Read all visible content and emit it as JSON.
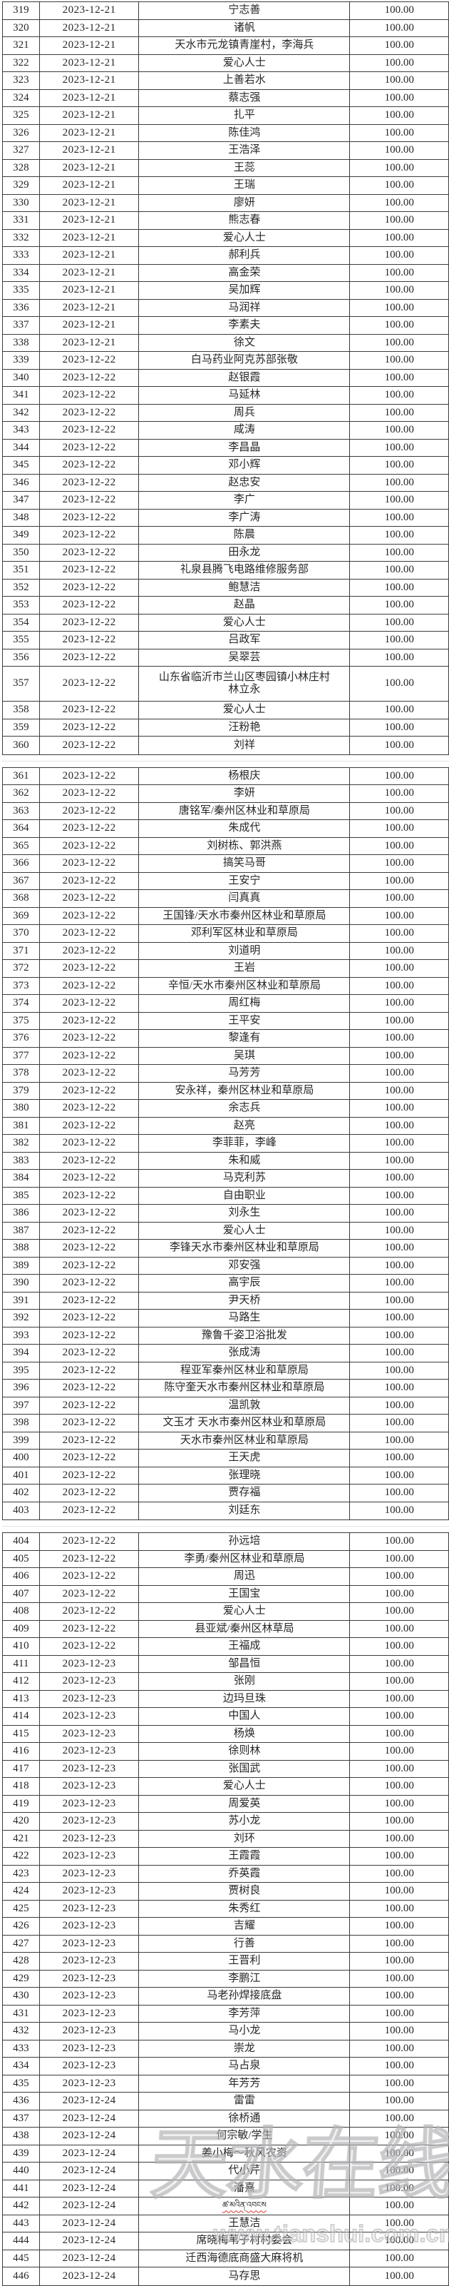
{
  "watermark": {
    "logo": "天水在线",
    "url": "www.tianshui.com.cn"
  },
  "colors": {
    "border": "#3c3c3c",
    "text": "#262626",
    "spellcheck_underline": "#d9332e",
    "watermark_gray": "#c8c8cb"
  },
  "amount_all": "100.00",
  "segments": [
    {
      "start": 319,
      "end": 360
    },
    {
      "start": 361,
      "end": 403
    },
    {
      "start": 404,
      "end": 446
    }
  ],
  "table": {
    "rows": [
      {
        "n": "319",
        "d": "2023-12-21",
        "name": "宁志善",
        "amt": "100.00"
      },
      {
        "n": "320",
        "d": "2023-12-21",
        "name": "诸帆",
        "amt": "100.00"
      },
      {
        "n": "321",
        "d": "2023-12-21",
        "name": "天水市元龙镇青崖村，李海兵",
        "amt": "100.00"
      },
      {
        "n": "322",
        "d": "2023-12-21",
        "name": "爱心人士",
        "amt": "100.00"
      },
      {
        "n": "323",
        "d": "2023-12-21",
        "name": "上善若水",
        "amt": "100.00"
      },
      {
        "n": "324",
        "d": "2023-12-21",
        "name": "蔡志强",
        "amt": "100.00"
      },
      {
        "n": "325",
        "d": "2023-12-21",
        "name": "扎平",
        "amt": "100.00"
      },
      {
        "n": "326",
        "d": "2023-12-21",
        "name": "陈佳鸿",
        "amt": "100.00"
      },
      {
        "n": "327",
        "d": "2023-12-21",
        "name": "王浩泽",
        "amt": "100.00"
      },
      {
        "n": "328",
        "d": "2023-12-21",
        "name": "王蕊",
        "amt": "100.00"
      },
      {
        "n": "329",
        "d": "2023-12-21",
        "name": "王瑞",
        "amt": "100.00"
      },
      {
        "n": "330",
        "d": "2023-12-21",
        "name": "廖妍",
        "amt": "100.00"
      },
      {
        "n": "331",
        "d": "2023-12-21",
        "name": "熊志春",
        "amt": "100.00"
      },
      {
        "n": "332",
        "d": "2023-12-21",
        "name": "爱心人士",
        "amt": "100.00"
      },
      {
        "n": "333",
        "d": "2023-12-21",
        "name": "郝利兵",
        "amt": "100.00"
      },
      {
        "n": "334",
        "d": "2023-12-21",
        "name": "高金荣",
        "amt": "100.00"
      },
      {
        "n": "335",
        "d": "2023-12-21",
        "name": "吴加辉",
        "amt": "100.00"
      },
      {
        "n": "336",
        "d": "2023-12-21",
        "name": "马润祥",
        "amt": "100.00"
      },
      {
        "n": "337",
        "d": "2023-12-21",
        "name": "李素夫",
        "amt": "100.00"
      },
      {
        "n": "338",
        "d": "2023-12-21",
        "name": "徐文",
        "amt": "100.00"
      },
      {
        "n": "339",
        "d": "2023-12-22",
        "name": "白马药业阿克苏部张敬",
        "amt": "100.00"
      },
      {
        "n": "340",
        "d": "2023-12-22",
        "name": "赵银霞",
        "amt": "100.00"
      },
      {
        "n": "341",
        "d": "2023-12-22",
        "name": "马延林",
        "amt": "100.00"
      },
      {
        "n": "342",
        "d": "2023-12-22",
        "name": "周兵",
        "amt": "100.00"
      },
      {
        "n": "343",
        "d": "2023-12-22",
        "name": "咸涛",
        "amt": "100.00"
      },
      {
        "n": "344",
        "d": "2023-12-22",
        "name": "李昌晶",
        "amt": "100.00"
      },
      {
        "n": "345",
        "d": "2023-12-22",
        "name": "邓小辉",
        "amt": "100.00"
      },
      {
        "n": "346",
        "d": "2023-12-22",
        "name": "赵忠安",
        "amt": "100.00"
      },
      {
        "n": "347",
        "d": "2023-12-22",
        "name": "李广",
        "amt": "100.00"
      },
      {
        "n": "348",
        "d": "2023-12-22",
        "name": "李广涛",
        "amt": "100.00"
      },
      {
        "n": "349",
        "d": "2023-12-22",
        "name": "陈晨",
        "amt": "100.00"
      },
      {
        "n": "350",
        "d": "2023-12-22",
        "name": "田永龙",
        "amt": "100.00"
      },
      {
        "n": "351",
        "d": "2023-12-22",
        "name": "礼泉县腾飞电路维修服务部",
        "amt": "100.00"
      },
      {
        "n": "352",
        "d": "2023-12-22",
        "name": "鲍慧洁",
        "amt": "100.00"
      },
      {
        "n": "353",
        "d": "2023-12-22",
        "name": "赵晶",
        "amt": "100.00"
      },
      {
        "n": "354",
        "d": "2023-12-22",
        "name": "爱心人士",
        "amt": "100.00"
      },
      {
        "n": "355",
        "d": "2023-12-22",
        "name": "吕政军",
        "amt": "100.00"
      },
      {
        "n": "356",
        "d": "2023-12-22",
        "name": "吴翠芸",
        "amt": "100.00"
      },
      {
        "n": "357",
        "d": "2023-12-22",
        "name": "山东省临沂市兰山区枣园镇小林庄村\n林立永",
        "amt": "100.00",
        "tall": true
      },
      {
        "n": "358",
        "d": "2023-12-22",
        "name": "爱心人士",
        "amt": "100.00"
      },
      {
        "n": "359",
        "d": "2023-12-22",
        "name": "汪粉艳",
        "amt": "100.00"
      },
      {
        "n": "360",
        "d": "2023-12-22",
        "name": "刘祥",
        "amt": "100.00"
      },
      {
        "n": "361",
        "d": "2023-12-22",
        "name": "杨根庆",
        "amt": "100.00"
      },
      {
        "n": "362",
        "d": "2023-12-22",
        "name": "李妍",
        "amt": "100.00"
      },
      {
        "n": "363",
        "d": "2023-12-22",
        "name": "唐铭军/秦州区林业和草原局",
        "amt": "100.00"
      },
      {
        "n": "364",
        "d": "2023-12-22",
        "name": "朱成代",
        "amt": "100.00"
      },
      {
        "n": "365",
        "d": "2023-12-22",
        "name": "刘树栋、郭洪燕",
        "amt": "100.00"
      },
      {
        "n": "366",
        "d": "2023-12-22",
        "name": "搞笑马哥",
        "amt": "100.00"
      },
      {
        "n": "367",
        "d": "2023-12-22",
        "name": "王安宁",
        "amt": "100.00"
      },
      {
        "n": "368",
        "d": "2023-12-22",
        "name": "闫真真",
        "amt": "100.00"
      },
      {
        "n": "369",
        "d": "2023-12-22",
        "name": "王国锋/天水市秦州区林业和草原局",
        "amt": "100.00"
      },
      {
        "n": "370",
        "d": "2023-12-22",
        "name": "邓利军区林业和草原局",
        "amt": "100.00"
      },
      {
        "n": "371",
        "d": "2023-12-22",
        "name": "刘道明",
        "amt": "100.00"
      },
      {
        "n": "372",
        "d": "2023-12-22",
        "name": "王岩",
        "amt": "100.00"
      },
      {
        "n": "373",
        "d": "2023-12-22",
        "name": "辛恒/天水市秦州区林业和草原局",
        "amt": "100.00"
      },
      {
        "n": "374",
        "d": "2023-12-22",
        "name": "周红梅",
        "amt": "100.00"
      },
      {
        "n": "375",
        "d": "2023-12-22",
        "name": "王平安",
        "amt": "100.00"
      },
      {
        "n": "376",
        "d": "2023-12-22",
        "name": "黎逢有",
        "amt": "100.00"
      },
      {
        "n": "377",
        "d": "2023-12-22",
        "name": "吴琪",
        "amt": "100.00"
      },
      {
        "n": "378",
        "d": "2023-12-22",
        "name": "马芳芳",
        "amt": "100.00"
      },
      {
        "n": "379",
        "d": "2023-12-22",
        "name": "安永祥，秦州区林业和草原局",
        "amt": "100.00"
      },
      {
        "n": "380",
        "d": "2023-12-22",
        "name": "余志兵",
        "amt": "100.00"
      },
      {
        "n": "381",
        "d": "2023-12-22",
        "name": "赵亮",
        "amt": "100.00"
      },
      {
        "n": "382",
        "d": "2023-12-22",
        "name": "李菲菲，李峰",
        "amt": "100.00"
      },
      {
        "n": "383",
        "d": "2023-12-22",
        "name": "朱和威",
        "amt": "100.00"
      },
      {
        "n": "384",
        "d": "2023-12-22",
        "name": "马克利苏",
        "amt": "100.00"
      },
      {
        "n": "385",
        "d": "2023-12-22",
        "name": "自由职业",
        "amt": "100.00"
      },
      {
        "n": "386",
        "d": "2023-12-22",
        "name": "刘永生",
        "amt": "100.00"
      },
      {
        "n": "387",
        "d": "2023-12-22",
        "name": "爱心人士",
        "amt": "100.00"
      },
      {
        "n": "388",
        "d": "2023-12-22",
        "name": "李锋天水市秦州区林业和草原局",
        "amt": "100.00"
      },
      {
        "n": "389",
        "d": "2023-12-22",
        "name": "邓安强",
        "amt": "100.00"
      },
      {
        "n": "390",
        "d": "2023-12-22",
        "name": "高宇辰",
        "amt": "100.00"
      },
      {
        "n": "391",
        "d": "2023-12-22",
        "name": "尹天桥",
        "amt": "100.00"
      },
      {
        "n": "392",
        "d": "2023-12-22",
        "name": "马路生",
        "amt": "100.00"
      },
      {
        "n": "393",
        "d": "2023-12-22",
        "name": "豫鲁千姿卫浴批发",
        "amt": "100.00"
      },
      {
        "n": "394",
        "d": "2023-12-22",
        "name": "张成涛",
        "amt": "100.00"
      },
      {
        "n": "395",
        "d": "2023-12-22",
        "name": "程亚军秦州区林业和草原局",
        "amt": "100.00"
      },
      {
        "n": "396",
        "d": "2023-12-22",
        "name": "陈守奎天水市秦州区林业和草原局",
        "amt": "100.00"
      },
      {
        "n": "397",
        "d": "2023-12-22",
        "name": "温凯敦",
        "amt": "100.00"
      },
      {
        "n": "398",
        "d": "2023-12-22",
        "name": "文玉才 天水市秦州区林业和草原局",
        "amt": "100.00"
      },
      {
        "n": "399",
        "d": "2023-12-22",
        "name": "天水市秦州区林业和草原局",
        "amt": "100.00"
      },
      {
        "n": "400",
        "d": "2023-12-22",
        "name": "王天虎",
        "amt": "100.00"
      },
      {
        "n": "401",
        "d": "2023-12-22",
        "name": "张理晓",
        "amt": "100.00"
      },
      {
        "n": "402",
        "d": "2023-12-22",
        "name": "贾存福",
        "amt": "100.00"
      },
      {
        "n": "403",
        "d": "2023-12-22",
        "name": "刘廷东",
        "amt": "100.00"
      },
      {
        "n": "404",
        "d": "2023-12-22",
        "name": "孙远培",
        "amt": "100.00"
      },
      {
        "n": "405",
        "d": "2023-12-22",
        "name": "李勇/秦州区林业和草原局",
        "amt": "100.00"
      },
      {
        "n": "406",
        "d": "2023-12-22",
        "name": "周迅",
        "amt": "100.00"
      },
      {
        "n": "407",
        "d": "2023-12-22",
        "name": "王国宝",
        "amt": "100.00"
      },
      {
        "n": "408",
        "d": "2023-12-22",
        "name": "爱心人士",
        "amt": "100.00"
      },
      {
        "n": "409",
        "d": "2023-12-22",
        "name": "县亚斌/秦州区林草局",
        "amt": "100.00"
      },
      {
        "n": "410",
        "d": "2023-12-22",
        "name": "王福成",
        "amt": "100.00"
      },
      {
        "n": "411",
        "d": "2023-12-23",
        "name": "邹昌恒",
        "amt": "100.00"
      },
      {
        "n": "412",
        "d": "2023-12-23",
        "name": "张刚",
        "amt": "100.00"
      },
      {
        "n": "413",
        "d": "2023-12-23",
        "name": "边玛旦珠",
        "amt": "100.00"
      },
      {
        "n": "414",
        "d": "2023-12-23",
        "name": "中国人",
        "amt": "100.00"
      },
      {
        "n": "415",
        "d": "2023-12-23",
        "name": "杨焕",
        "amt": "100.00"
      },
      {
        "n": "416",
        "d": "2023-12-23",
        "name": "徐则林",
        "amt": "100.00"
      },
      {
        "n": "417",
        "d": "2023-12-23",
        "name": "张国武",
        "amt": "100.00"
      },
      {
        "n": "418",
        "d": "2023-12-23",
        "name": "爱心人士",
        "amt": "100.00"
      },
      {
        "n": "419",
        "d": "2023-12-23",
        "name": "周爱英",
        "amt": "100.00"
      },
      {
        "n": "420",
        "d": "2023-12-23",
        "name": "苏小龙",
        "amt": "100.00"
      },
      {
        "n": "421",
        "d": "2023-12-23",
        "name": "刘环",
        "amt": "100.00"
      },
      {
        "n": "422",
        "d": "2023-12-23",
        "name": "王霞霞",
        "amt": "100.00"
      },
      {
        "n": "423",
        "d": "2023-12-23",
        "name": "乔英霞",
        "amt": "100.00"
      },
      {
        "n": "424",
        "d": "2023-12-23",
        "name": "贾树良",
        "amt": "100.00"
      },
      {
        "n": "425",
        "d": "2023-12-23",
        "name": "朱秀红",
        "amt": "100.00"
      },
      {
        "n": "426",
        "d": "2023-12-23",
        "name": "吉耀",
        "amt": "100.00"
      },
      {
        "n": "427",
        "d": "2023-12-23",
        "name": "行善",
        "amt": "100.00"
      },
      {
        "n": "428",
        "d": "2023-12-23",
        "name": "王晋利",
        "amt": "100.00"
      },
      {
        "n": "429",
        "d": "2023-12-23",
        "name": "李鹏江",
        "amt": "100.00"
      },
      {
        "n": "430",
        "d": "2023-12-23",
        "name": "马老孙焊接底盘",
        "amt": "100.00"
      },
      {
        "n": "431",
        "d": "2023-12-23",
        "name": "李芳萍",
        "amt": "100.00"
      },
      {
        "n": "432",
        "d": "2023-12-23",
        "name": "马小龙",
        "amt": "100.00"
      },
      {
        "n": "433",
        "d": "2023-12-23",
        "name": "崇龙",
        "amt": "100.00"
      },
      {
        "n": "434",
        "d": "2023-12-23",
        "name": "马占泉",
        "amt": "100.00"
      },
      {
        "n": "435",
        "d": "2023-12-23",
        "name": "年芳芳",
        "amt": "100.00"
      },
      {
        "n": "436",
        "d": "2023-12-24",
        "name": "雷雷",
        "amt": "100.00"
      },
      {
        "n": "437",
        "d": "2023-12-24",
        "name": "徐桥通",
        "amt": "100.00"
      },
      {
        "n": "438",
        "d": "2023-12-24",
        "name": "何宗敏/学生",
        "amt": "100.00"
      },
      {
        "n": "439",
        "d": "2023-12-24",
        "name": "姜小梅～秋风农资",
        "amt": "100.00"
      },
      {
        "n": "440",
        "d": "2023-12-24",
        "name": "代小芹",
        "amt": "100.00"
      },
      {
        "n": "441",
        "d": "2023-12-24",
        "name": "潘熹",
        "amt": "100.00"
      },
      {
        "n": "442",
        "d": "2023-12-24",
        "name": "ཚ་མའིན་འབངས",
        "amt": "100.00",
        "tibetan": true
      },
      {
        "n": "443",
        "d": "2023-12-24",
        "name": "王慧洁",
        "amt": "100.00"
      },
      {
        "n": "444",
        "d": "2023-12-24",
        "name": "席晓梅苇子村村委会",
        "amt": "100.00"
      },
      {
        "n": "445",
        "d": "2023-12-24",
        "name": "迁西海德底商盛大麻将机",
        "amt": "100.00"
      },
      {
        "n": "446",
        "d": "2023-12-24",
        "name": "马存思",
        "amt": "100.00"
      }
    ]
  }
}
